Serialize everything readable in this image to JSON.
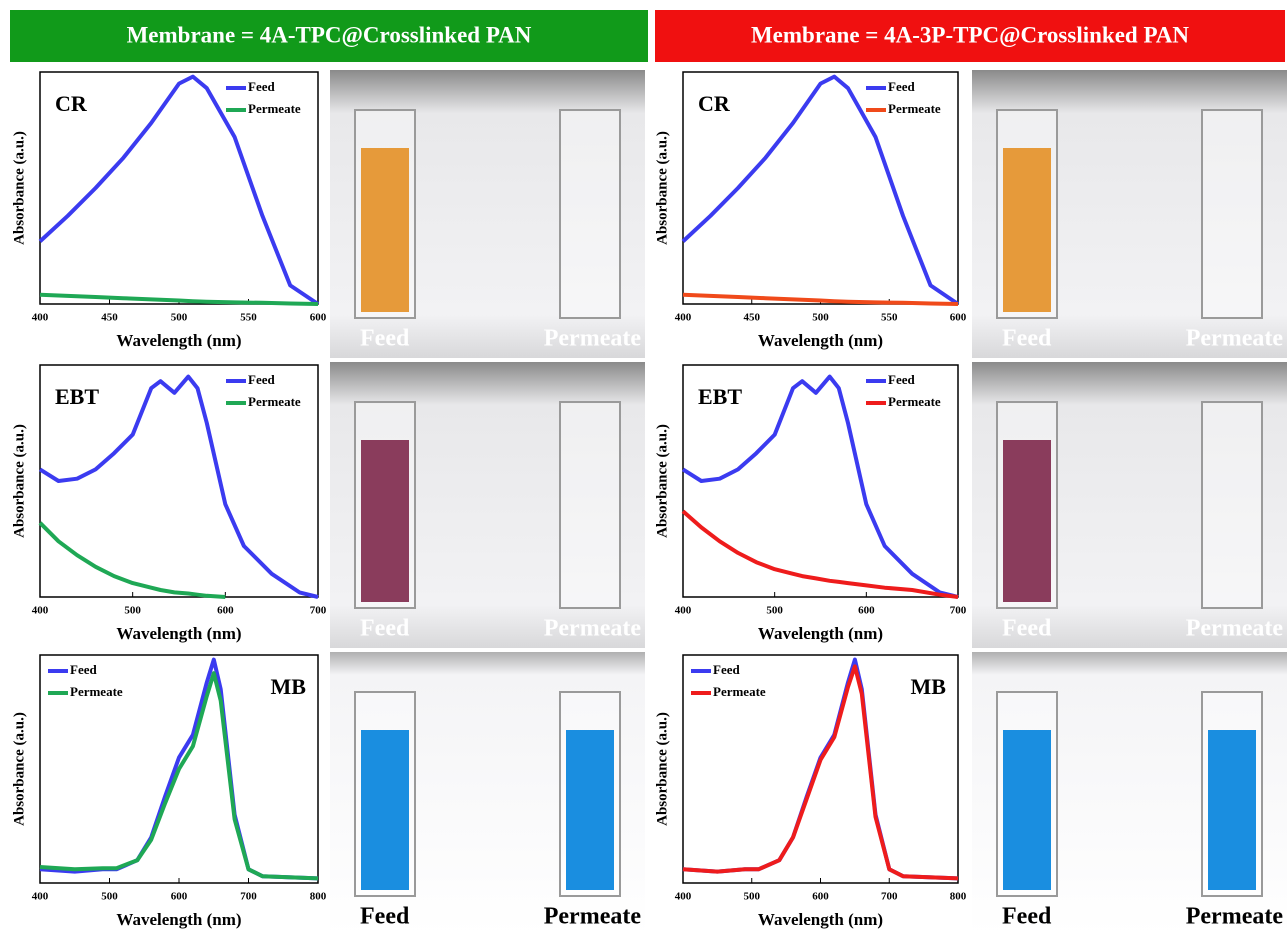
{
  "headers": [
    "Membrane = 4A-TPC@Crosslinked PAN",
    "Membrane = 4A-3P-TPC@Crosslinked PAN"
  ],
  "photos": [
    {
      "labels": [
        "Feed",
        "Permeate"
      ]
    },
    {
      "labels": [
        "Feed",
        "Permeate"
      ]
    },
    {
      "labels": [
        "Feed",
        "Permeate"
      ]
    },
    {
      "labels": [
        "Feed",
        "Permeate"
      ]
    },
    {
      "labels": [
        "Feed",
        "Permeate"
      ]
    },
    {
      "labels": [
        "Feed",
        "Permeate"
      ]
    }
  ],
  "chart_data": [
    {
      "type": "line",
      "annotation": "CR",
      "x_label": "Wavelength (nm)",
      "y_label": "Absorbance (a.u.)",
      "legend": "upper right",
      "x": [
        400,
        420,
        440,
        460,
        480,
        500,
        510,
        520,
        540,
        560,
        580,
        600
      ],
      "series": [
        {
          "name": "Feed",
          "color": "#3b3bf0",
          "values": [
            0.27,
            0.38,
            0.5,
            0.63,
            0.78,
            0.95,
            0.98,
            0.93,
            0.72,
            0.38,
            0.08,
            0.0
          ]
        },
        {
          "name": "Permeate",
          "color": "#1fa855",
          "values": [
            0.04,
            0.035,
            0.03,
            0.025,
            0.02,
            0.015,
            0.012,
            0.01,
            0.007,
            0.005,
            0.002,
            0.0
          ]
        }
      ],
      "xlim": [
        400,
        600
      ],
      "xticks": [
        400,
        450,
        500,
        550,
        600
      ],
      "ylim": [
        0,
        1
      ]
    },
    {
      "type": "line",
      "annotation": "EBT",
      "x_label": "Wavelength (nm)",
      "y_label": "Absorbance (a.u.)",
      "legend": "upper right",
      "x": [
        400,
        420,
        440,
        460,
        480,
        500,
        520,
        530,
        545,
        560,
        570,
        580,
        600,
        620,
        650,
        680,
        700
      ],
      "series": [
        {
          "name": "Feed",
          "color": "#3b3bf0",
          "values": [
            0.55,
            0.5,
            0.51,
            0.55,
            0.62,
            0.7,
            0.9,
            0.93,
            0.88,
            0.95,
            0.9,
            0.75,
            0.4,
            0.22,
            0.1,
            0.02,
            0.0
          ]
        },
        {
          "name": "Permeate",
          "color": "#1fa855",
          "values": [
            0.32,
            0.24,
            0.18,
            0.13,
            0.09,
            0.06,
            0.04,
            0.03,
            0.02,
            0.015,
            0.01,
            0.005,
            0.0,
            null,
            null,
            null,
            null
          ]
        }
      ],
      "xlim": [
        400,
        700
      ],
      "xticks": [
        400,
        500,
        600,
        700
      ],
      "ylim": [
        0,
        1
      ]
    },
    {
      "type": "line",
      "annotation": "MB",
      "x_label": "Wavelength (nm)",
      "y_label": "Absorbance (a.u.)",
      "legend": "upper left",
      "x": [
        400,
        450,
        490,
        510,
        540,
        560,
        580,
        600,
        620,
        640,
        650,
        660,
        680,
        700,
        720,
        800
      ],
      "series": [
        {
          "name": "Feed",
          "color": "#3b3bf0",
          "values": [
            0.06,
            0.05,
            0.06,
            0.06,
            0.1,
            0.2,
            0.38,
            0.55,
            0.65,
            0.88,
            0.98,
            0.85,
            0.3,
            0.06,
            0.03,
            0.02
          ]
        },
        {
          "name": "Permeate",
          "color": "#1fa855",
          "values": [
            0.07,
            0.06,
            0.065,
            0.065,
            0.1,
            0.19,
            0.35,
            0.5,
            0.6,
            0.82,
            0.92,
            0.8,
            0.28,
            0.06,
            0.03,
            0.02
          ]
        }
      ],
      "xlim": [
        400,
        800
      ],
      "xticks": [
        400,
        500,
        600,
        700,
        800
      ],
      "ylim": [
        0,
        1
      ]
    },
    {
      "type": "line",
      "annotation": "CR",
      "x_label": "Wavelength (nm)",
      "y_label": "Absorbance (a.u.)",
      "legend": "upper right",
      "x": [
        400,
        420,
        440,
        460,
        480,
        500,
        510,
        520,
        540,
        560,
        580,
        600
      ],
      "series": [
        {
          "name": "Feed",
          "color": "#3b3bf0",
          "values": [
            0.27,
            0.38,
            0.5,
            0.63,
            0.78,
            0.95,
            0.98,
            0.93,
            0.72,
            0.38,
            0.08,
            0.0
          ]
        },
        {
          "name": "Permeate",
          "color": "#f04a1a",
          "values": [
            0.04,
            0.035,
            0.03,
            0.025,
            0.02,
            0.015,
            0.012,
            0.01,
            0.007,
            0.005,
            0.002,
            0.0
          ]
        }
      ],
      "xlim": [
        400,
        600
      ],
      "xticks": [
        400,
        450,
        500,
        550,
        600
      ],
      "ylim": [
        0,
        1
      ]
    },
    {
      "type": "line",
      "annotation": "EBT",
      "x_label": "Wavelength (nm)",
      "y_label": "Absorbance (a.u.)",
      "legend": "upper right",
      "x": [
        400,
        420,
        440,
        460,
        480,
        500,
        520,
        530,
        545,
        560,
        570,
        580,
        600,
        620,
        650,
        680,
        700
      ],
      "series": [
        {
          "name": "Feed",
          "color": "#3b3bf0",
          "values": [
            0.55,
            0.5,
            0.51,
            0.55,
            0.62,
            0.7,
            0.9,
            0.93,
            0.88,
            0.95,
            0.9,
            0.75,
            0.4,
            0.22,
            0.1,
            0.02,
            0.0
          ]
        },
        {
          "name": "Permeate",
          "color": "#ee1c1c",
          "values": [
            0.37,
            0.3,
            0.24,
            0.19,
            0.15,
            0.12,
            0.1,
            0.09,
            0.08,
            0.07,
            0.065,
            0.06,
            0.05,
            0.04,
            0.03,
            0.01,
            0.0
          ]
        }
      ],
      "xlim": [
        400,
        700
      ],
      "xticks": [
        400,
        500,
        600,
        700
      ],
      "ylim": [
        0,
        1
      ]
    },
    {
      "type": "line",
      "annotation": "MB",
      "x_label": "Wavelength (nm)",
      "y_label": "Absorbance (a.u.)",
      "legend": "upper left",
      "x": [
        400,
        450,
        490,
        510,
        540,
        560,
        580,
        600,
        620,
        640,
        650,
        660,
        680,
        700,
        720,
        800
      ],
      "series": [
        {
          "name": "Feed",
          "color": "#3b3bf0",
          "values": [
            0.06,
            0.05,
            0.06,
            0.06,
            0.1,
            0.2,
            0.38,
            0.55,
            0.65,
            0.88,
            0.98,
            0.85,
            0.3,
            0.06,
            0.03,
            0.02
          ]
        },
        {
          "name": "Permeate",
          "color": "#ee1c1c",
          "values": [
            0.06,
            0.05,
            0.06,
            0.06,
            0.1,
            0.2,
            0.37,
            0.54,
            0.64,
            0.86,
            0.95,
            0.83,
            0.29,
            0.06,
            0.03,
            0.02
          ]
        }
      ],
      "xlim": [
        400,
        800
      ],
      "xticks": [
        400,
        500,
        600,
        700,
        800
      ],
      "ylim": [
        0,
        1
      ]
    }
  ]
}
